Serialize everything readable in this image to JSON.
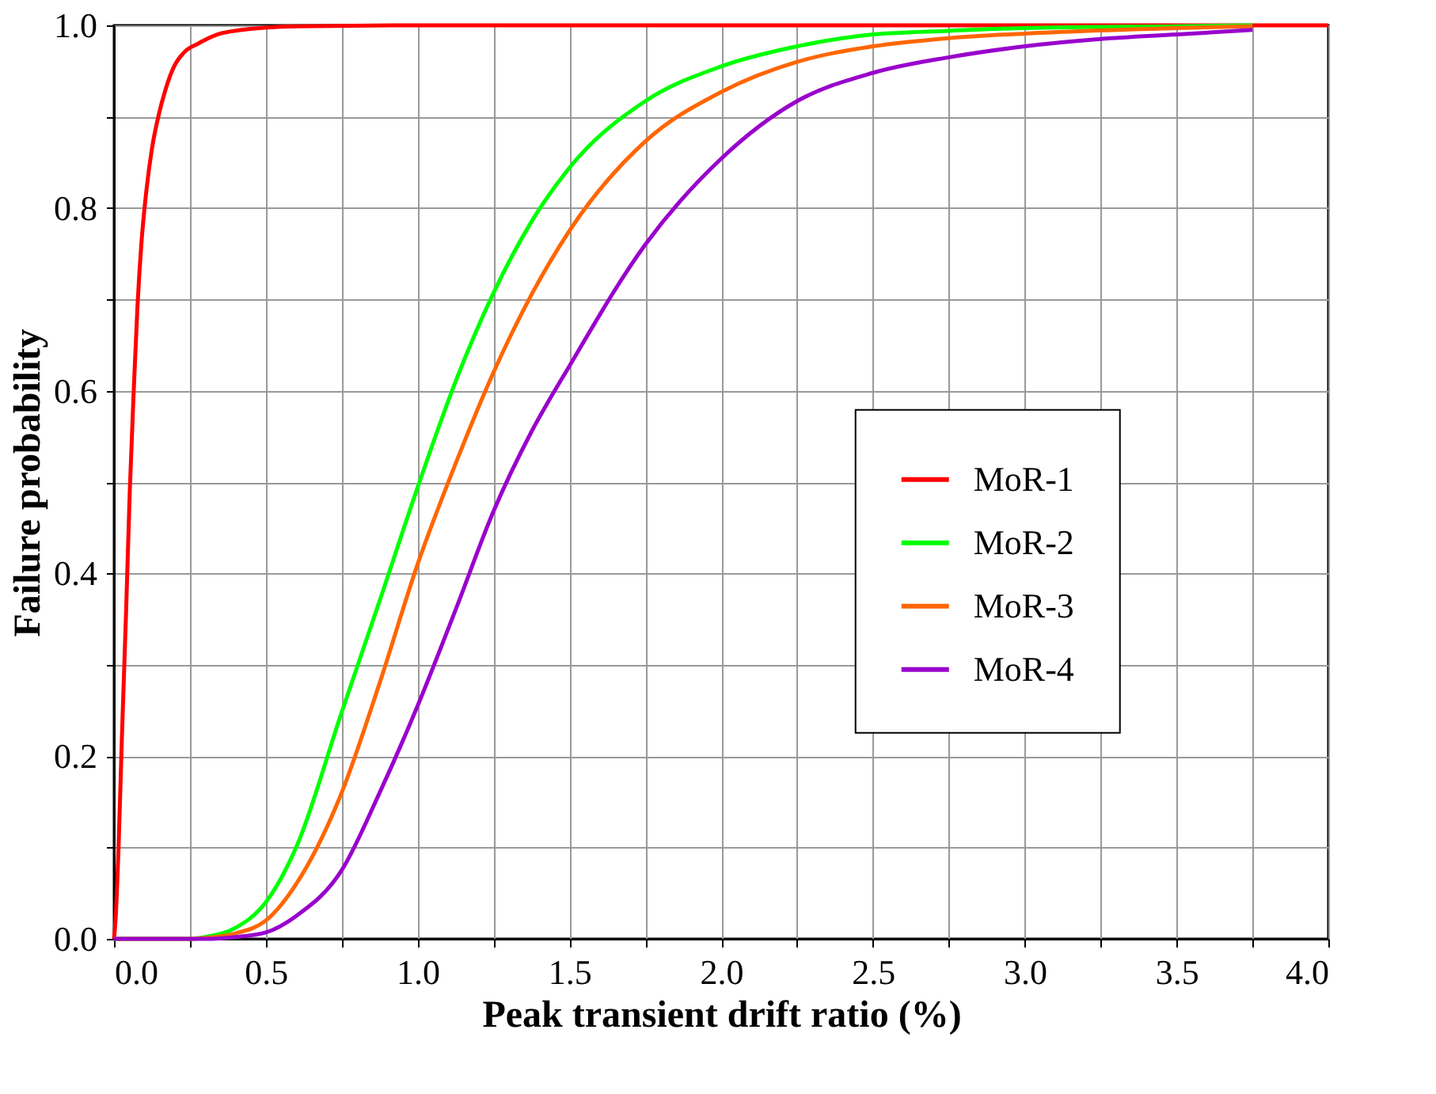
{
  "chart_data": {
    "type": "line",
    "xlabel": "Peak transient drift ratio (%)",
    "ylabel": "Failure probability",
    "xlim": [
      0,
      4.0
    ],
    "ylim": [
      0,
      1.0
    ],
    "xticks": [
      {
        "value": 0,
        "label": "0.0"
      },
      {
        "value": 0.25,
        "label": null
      },
      {
        "value": 0.5,
        "label": "0.5"
      },
      {
        "value": 0.75,
        "label": null
      },
      {
        "value": 1,
        "label": "1.0"
      },
      {
        "value": 1.25,
        "label": null
      },
      {
        "value": 1.5,
        "label": "1.5"
      },
      {
        "value": 1.75,
        "label": null
      },
      {
        "value": 2,
        "label": "2.0"
      },
      {
        "value": 2.25,
        "label": null
      },
      {
        "value": 2.5,
        "label": "2.5"
      },
      {
        "value": 2.75,
        "label": null
      },
      {
        "value": 3,
        "label": "3.0"
      },
      {
        "value": 3.25,
        "label": null
      },
      {
        "value": 3.5,
        "label": "3.5"
      },
      {
        "value": 3.75,
        "label": null
      },
      {
        "value": 4,
        "label": "4.0"
      }
    ],
    "yticks": [
      {
        "value": 0,
        "label": "0.0"
      },
      {
        "value": 0.1,
        "label": null
      },
      {
        "value": 0.2,
        "label": "0.2"
      },
      {
        "value": 0.3,
        "label": null
      },
      {
        "value": 0.4,
        "label": "0.4"
      },
      {
        "value": 0.5,
        "label": null
      },
      {
        "value": 0.6,
        "label": "0.6"
      },
      {
        "value": 0.7,
        "label": null
      },
      {
        "value": 0.8,
        "label": "0.8"
      },
      {
        "value": 0.9,
        "label": null
      },
      {
        "value": 1,
        "label": "1.0"
      }
    ],
    "grid": true,
    "legend": "right",
    "marker": "none",
    "line_style": "solid",
    "series": [
      {
        "name": "MoR-1",
        "color": "#ff0000",
        "x": [
          0,
          0.005,
          0.015,
          0.026,
          0.04,
          0.052,
          0.065,
          0.077,
          0.09,
          0.107,
          0.125,
          0.146,
          0.17,
          0.198,
          0.23,
          0.277,
          0.34,
          0.42,
          0.6,
          1.0,
          2.0,
          3.0,
          4.0
        ],
        "values": [
          0,
          0.02,
          0.1,
          0.22,
          0.36,
          0.49,
          0.6,
          0.69,
          0.76,
          0.82,
          0.865,
          0.9,
          0.93,
          0.955,
          0.97,
          0.98,
          0.99,
          0.995,
          0.999,
          1.0,
          1.0,
          1.0,
          1.0
        ]
      },
      {
        "name": "MoR-2",
        "color": "#00ff00",
        "x": [
          0,
          0.25,
          0.3,
          0.4,
          0.5,
          0.6,
          0.75,
          0.875,
          1.0,
          1.125,
          1.25,
          1.375,
          1.5,
          1.75,
          2.0,
          2.25,
          2.5,
          2.75,
          3.0,
          3.5,
          3.75
        ],
        "values": [
          0,
          0,
          0.002,
          0.012,
          0.04,
          0.1,
          0.248,
          0.37,
          0.494,
          0.61,
          0.707,
          0.785,
          0.844,
          0.917,
          0.955,
          0.977,
          0.99,
          0.994,
          0.997,
          0.999,
          1.0
        ]
      },
      {
        "name": "MoR-3",
        "color": "#ff6600",
        "x": [
          0,
          0.25,
          0.3,
          0.4,
          0.5,
          0.6,
          0.75,
          0.875,
          1.0,
          1.125,
          1.25,
          1.375,
          1.5,
          1.75,
          2.0,
          2.25,
          2.5,
          2.75,
          3.0,
          3.5,
          3.75
        ],
        "values": [
          0,
          0,
          0.001,
          0.006,
          0.02,
          0.06,
          0.16,
          0.28,
          0.41,
          0.52,
          0.62,
          0.705,
          0.775,
          0.873,
          0.927,
          0.96,
          0.977,
          0.986,
          0.991,
          0.997,
          0.999
        ]
      },
      {
        "name": "MoR-4",
        "color": "#9900cc",
        "x": [
          0,
          0.3,
          0.4,
          0.5,
          0.6,
          0.75,
          0.875,
          1.0,
          1.125,
          1.25,
          1.375,
          1.5,
          1.75,
          2.0,
          2.25,
          2.5,
          2.75,
          3.0,
          3.25,
          3.5,
          3.75
        ],
        "values": [
          0,
          0,
          0.002,
          0.007,
          0.025,
          0.075,
          0.16,
          0.255,
          0.36,
          0.468,
          0.555,
          0.627,
          0.76,
          0.854,
          0.917,
          0.948,
          0.965,
          0.977,
          0.985,
          0.99,
          0.995
        ]
      }
    ]
  }
}
